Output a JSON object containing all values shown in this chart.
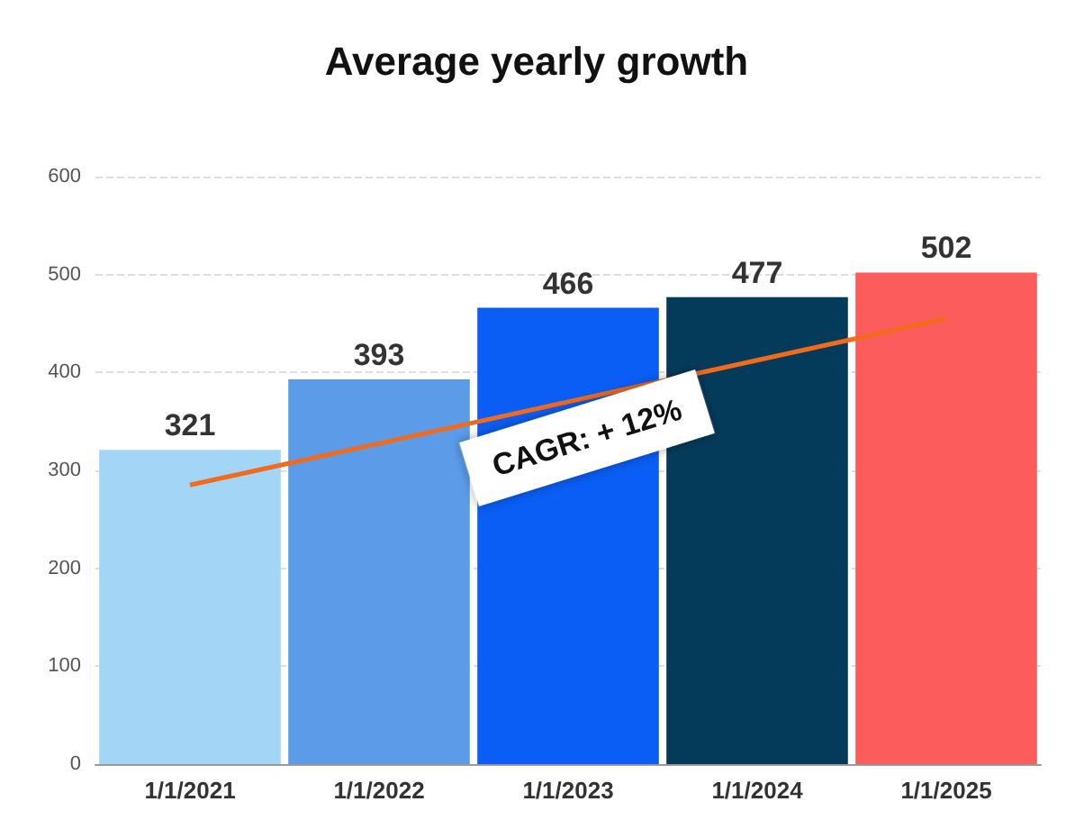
{
  "chart_data": {
    "type": "bar",
    "title": "Average yearly growth",
    "categories": [
      "1/1/2021",
      "1/1/2022",
      "1/1/2023",
      "1/1/2024",
      "1/1/2025"
    ],
    "series": [
      {
        "values": [
          321,
          393,
          466,
          477,
          502
        ],
        "value_labels": [
          "321",
          "393",
          "466",
          "477",
          "502"
        ],
        "colors": [
          "#a3d5f7",
          "#5b9be8",
          "#0a5ef5",
          "#053b5a",
          "#fd5c5c"
        ]
      },
      {
        "type": "line",
        "x": [
          "1/1/2021",
          "1/1/2025"
        ],
        "values": [
          285,
          455
        ],
        "color": "#f26b1d"
      }
    ],
    "ylim": [
      0,
      600
    ],
    "yticks": [
      0,
      100,
      200,
      300,
      400,
      500,
      600
    ],
    "grid": "y",
    "marker": "none",
    "annotations": [
      "CAGR: + 12%"
    ]
  }
}
